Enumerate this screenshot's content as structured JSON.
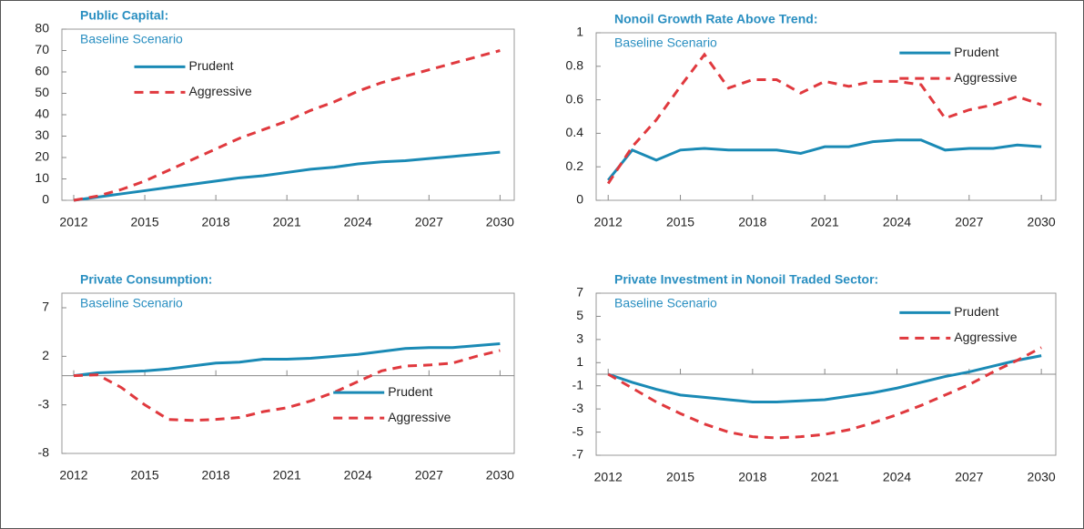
{
  "chart_data": [
    {
      "type": "line",
      "title": "Public Capital:",
      "subtitle": "Baseline Scenario",
      "x": [
        2012,
        2013,
        2014,
        2015,
        2016,
        2017,
        2018,
        2019,
        2020,
        2021,
        2022,
        2023,
        2024,
        2025,
        2026,
        2027,
        2028,
        2029,
        2030
      ],
      "xlim": [
        2011.5,
        2030.6
      ],
      "xticks": [
        2012,
        2015,
        2018,
        2021,
        2024,
        2027,
        2030
      ],
      "ylim": [
        0,
        80
      ],
      "yticks": [
        0,
        10,
        20,
        30,
        40,
        50,
        60,
        70,
        80
      ],
      "legend": "upper left",
      "series": [
        {
          "name": "Prudent",
          "color": "#1a8ab5",
          "linestyle": "solid",
          "values": [
            0,
            1.5,
            3,
            4.5,
            6,
            7.5,
            9,
            10.5,
            11.5,
            13,
            14.5,
            15.5,
            17,
            18,
            18.5,
            19.5,
            20.5,
            21.5,
            22.5
          ]
        },
        {
          "name": "Aggressive",
          "color": "#e0393e",
          "linestyle": "dashed",
          "values": [
            0,
            2,
            5,
            9,
            14,
            19,
            24,
            29,
            33,
            37,
            42,
            46,
            51,
            55,
            58,
            61,
            64,
            67,
            70
          ]
        }
      ]
    },
    {
      "type": "line",
      "title": "Nonoil Growth Rate Above Trend:",
      "subtitle": "Baseline Scenario",
      "x": [
        2012,
        2013,
        2014,
        2015,
        2016,
        2017,
        2018,
        2019,
        2020,
        2021,
        2022,
        2023,
        2024,
        2025,
        2026,
        2027,
        2028,
        2029,
        2030
      ],
      "xlim": [
        2011.5,
        2030.6
      ],
      "xticks": [
        2012,
        2015,
        2018,
        2021,
        2024,
        2027,
        2030
      ],
      "ylim": [
        0,
        1
      ],
      "yticks": [
        0,
        0.2,
        0.4,
        0.6,
        0.8,
        1
      ],
      "legend": "upper right",
      "series": [
        {
          "name": "Prudent",
          "color": "#1a8ab5",
          "linestyle": "solid",
          "values": [
            0.12,
            0.3,
            0.24,
            0.3,
            0.31,
            0.3,
            0.3,
            0.3,
            0.28,
            0.32,
            0.32,
            0.35,
            0.36,
            0.36,
            0.3,
            0.31,
            0.31,
            0.33,
            0.32
          ]
        },
        {
          "name": "Aggressive",
          "color": "#e0393e",
          "linestyle": "dashed",
          "values": [
            0.1,
            0.32,
            0.48,
            0.68,
            0.87,
            0.67,
            0.72,
            0.72,
            0.64,
            0.71,
            0.68,
            0.71,
            0.71,
            0.69,
            0.49,
            0.54,
            0.57,
            0.62,
            0.57
          ]
        }
      ]
    },
    {
      "type": "line",
      "title": "Private Consumption:",
      "subtitle": "Baseline Scenario",
      "x": [
        2012,
        2013,
        2014,
        2015,
        2016,
        2017,
        2018,
        2019,
        2020,
        2021,
        2022,
        2023,
        2024,
        2025,
        2026,
        2027,
        2028,
        2029,
        2030
      ],
      "xlim": [
        2011.5,
        2030.6
      ],
      "xticks": [
        2012,
        2015,
        2018,
        2021,
        2024,
        2027,
        2030
      ],
      "ylim": [
        -8,
        8.5
      ],
      "yticks": [
        -8,
        -3,
        2,
        7
      ],
      "legend": "lower right",
      "series": [
        {
          "name": "Prudent",
          "color": "#1a8ab5",
          "linestyle": "solid",
          "values": [
            0,
            0.3,
            0.4,
            0.5,
            0.7,
            1.0,
            1.3,
            1.4,
            1.7,
            1.7,
            1.8,
            2.0,
            2.2,
            2.5,
            2.8,
            2.9,
            2.9,
            3.1,
            3.3
          ]
        },
        {
          "name": "Aggressive",
          "color": "#e0393e",
          "linestyle": "dashed",
          "values": [
            0,
            0.1,
            -1.2,
            -3,
            -4.5,
            -4.6,
            -4.5,
            -4.3,
            -3.7,
            -3.3,
            -2.6,
            -1.7,
            -0.6,
            0.5,
            1,
            1.1,
            1.3,
            2,
            2.6
          ]
        }
      ]
    },
    {
      "type": "line",
      "title": "Private Investment in Nonoil Traded Sector:",
      "subtitle": "Baseline Scenario",
      "x": [
        2012,
        2013,
        2014,
        2015,
        2016,
        2017,
        2018,
        2019,
        2020,
        2021,
        2022,
        2023,
        2024,
        2025,
        2026,
        2027,
        2028,
        2029,
        2030
      ],
      "xlim": [
        2011.5,
        2030.6
      ],
      "xticks": [
        2012,
        2015,
        2018,
        2021,
        2024,
        2027,
        2030
      ],
      "ylim": [
        -7,
        7
      ],
      "yticks": [
        -7,
        -5,
        -3,
        -1,
        1,
        3,
        5,
        7
      ],
      "legend": "upper right",
      "series": [
        {
          "name": "Prudent",
          "color": "#1a8ab5",
          "linestyle": "solid",
          "values": [
            0,
            -0.7,
            -1.3,
            -1.8,
            -2.0,
            -2.2,
            -2.4,
            -2.4,
            -2.3,
            -2.2,
            -1.9,
            -1.6,
            -1.2,
            -0.7,
            -0.2,
            0.2,
            0.7,
            1.2,
            1.6
          ]
        },
        {
          "name": "Aggressive",
          "color": "#e0393e",
          "linestyle": "dashed",
          "values": [
            0,
            -1.2,
            -2.4,
            -3.4,
            -4.3,
            -5,
            -5.4,
            -5.5,
            -5.4,
            -5.2,
            -4.8,
            -4.2,
            -3.5,
            -2.7,
            -1.8,
            -0.9,
            0.2,
            1.2,
            2.3
          ]
        }
      ]
    }
  ]
}
